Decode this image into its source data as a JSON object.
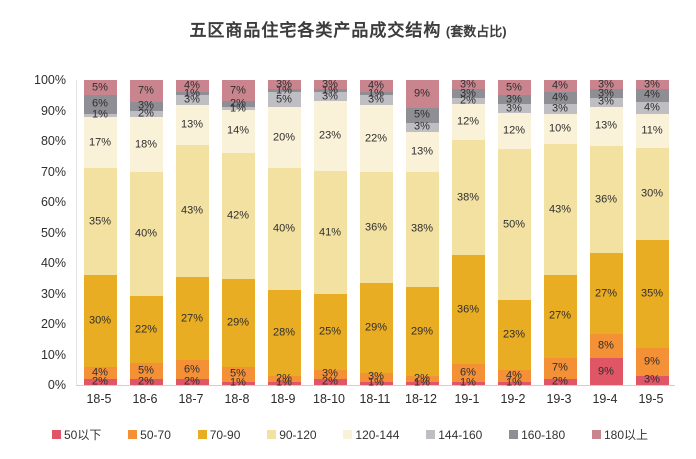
{
  "title": {
    "main": "五区商品住宅各类产品成交结构",
    "sub": "(套数占比)"
  },
  "chart_data": {
    "type": "bar",
    "stacked": true,
    "unit": "%",
    "title": "五区商品住宅各类产品成交结构 (套数占比)",
    "categories": [
      "18-5",
      "18-6",
      "18-7",
      "18-8",
      "18-9",
      "18-10",
      "18-11",
      "18-12",
      "19-1",
      "19-2",
      "19-3",
      "19-4",
      "19-5"
    ],
    "series": [
      {
        "name": "50以下",
        "color": "#e05666",
        "values": [
          2,
          2,
          2,
          1,
          1,
          2,
          1,
          1,
          1,
          1,
          2,
          9,
          3
        ]
      },
      {
        "name": "50-70",
        "color": "#f49035",
        "values": [
          4,
          5,
          6,
          5,
          2,
          3,
          3,
          2,
          6,
          4,
          7,
          8,
          9
        ]
      },
      {
        "name": "70-90",
        "color": "#e9ad24",
        "values": [
          30,
          22,
          27,
          29,
          28,
          25,
          29,
          29,
          36,
          23,
          27,
          27,
          35
        ]
      },
      {
        "name": "90-120",
        "color": "#f3e1a2",
        "values": [
          35,
          40,
          43,
          42,
          40,
          41,
          36,
          38,
          38,
          50,
          43,
          36,
          30
        ]
      },
      {
        "name": "120-144",
        "color": "#faf2d8",
        "values": [
          17,
          18,
          13,
          14,
          20,
          23,
          22,
          13,
          12,
          12,
          10,
          13,
          11
        ]
      },
      {
        "name": "144-160",
        "color": "#bfbec3",
        "values": [
          1,
          2,
          3,
          1,
          5,
          3,
          3,
          3,
          2,
          3,
          3,
          3,
          4
        ]
      },
      {
        "name": "160-180",
        "color": "#8f8e94",
        "values": [
          6,
          3,
          1,
          2,
          1,
          1,
          1,
          5,
          3,
          3,
          4,
          3,
          4
        ]
      },
      {
        "name": "180以上",
        "color": "#c9848e",
        "values": [
          5,
          7,
          4,
          7,
          3,
          3,
          4,
          9,
          3,
          5,
          4,
          3,
          3
        ]
      }
    ],
    "y_ticks": [
      "100%",
      "90%",
      "80%",
      "70%",
      "60%",
      "50%",
      "40%",
      "30%",
      "20%",
      "10%",
      "0%"
    ],
    "ylim": [
      0,
      100
    ],
    "value_labels": true,
    "grid": false,
    "legend_position": "bottom"
  }
}
